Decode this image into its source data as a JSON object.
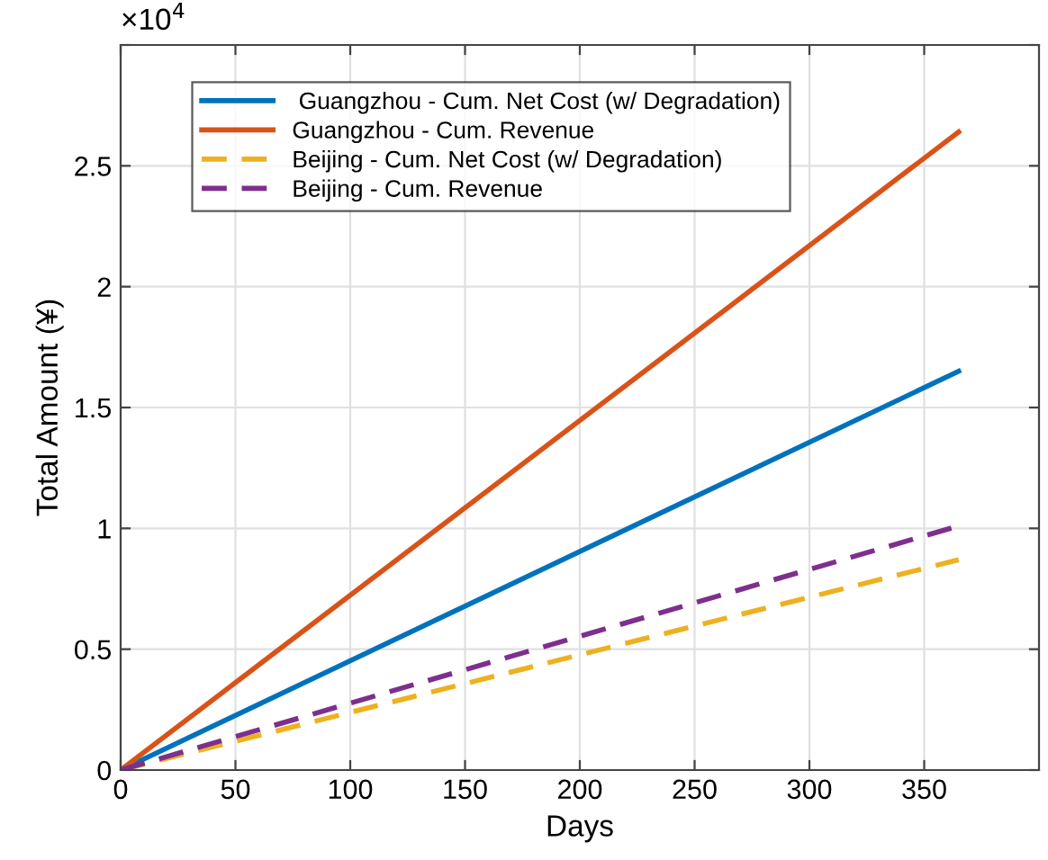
{
  "chart_data": {
    "type": "line",
    "xlabel": "Days",
    "ylabel": "Total Amount (¥)",
    "x": [
      0,
      365
    ],
    "series": [
      {
        "name": " Guangzhou - Cum. Net Cost (w/ Degradation)",
        "color": "#0072bd",
        "values": [
          0,
          1.65
        ],
        "line_style": "solid"
      },
      {
        "name": "Guangzhou - Cum. Revenue",
        "color": "#d95319",
        "values": [
          0,
          2.64
        ],
        "line_style": "solid"
      },
      {
        "name": "Beijing - Cum. Net Cost (w/ Degradation)",
        "color": "#edb120",
        "values": [
          0,
          0.87
        ],
        "line_style": "dashed"
      },
      {
        "name": "Beijing - Cum. Revenue",
        "color": "#7e2f8e",
        "values": [
          0,
          1.01
        ],
        "line_style": "dashed"
      }
    ],
    "xlim": [
      0,
      400
    ],
    "xticks": [
      0,
      50,
      100,
      150,
      200,
      250,
      300,
      350
    ],
    "ylim": [
      0,
      3
    ],
    "yticks": [
      0,
      0.5,
      1,
      1.5,
      2,
      2.5,
      {
        "value": 3,
        "label": null
      }
    ],
    "annotations": [
      "×10$^{4}$"
    ],
    "grid": true,
    "legend": "top left",
    "marker": "none"
  }
}
